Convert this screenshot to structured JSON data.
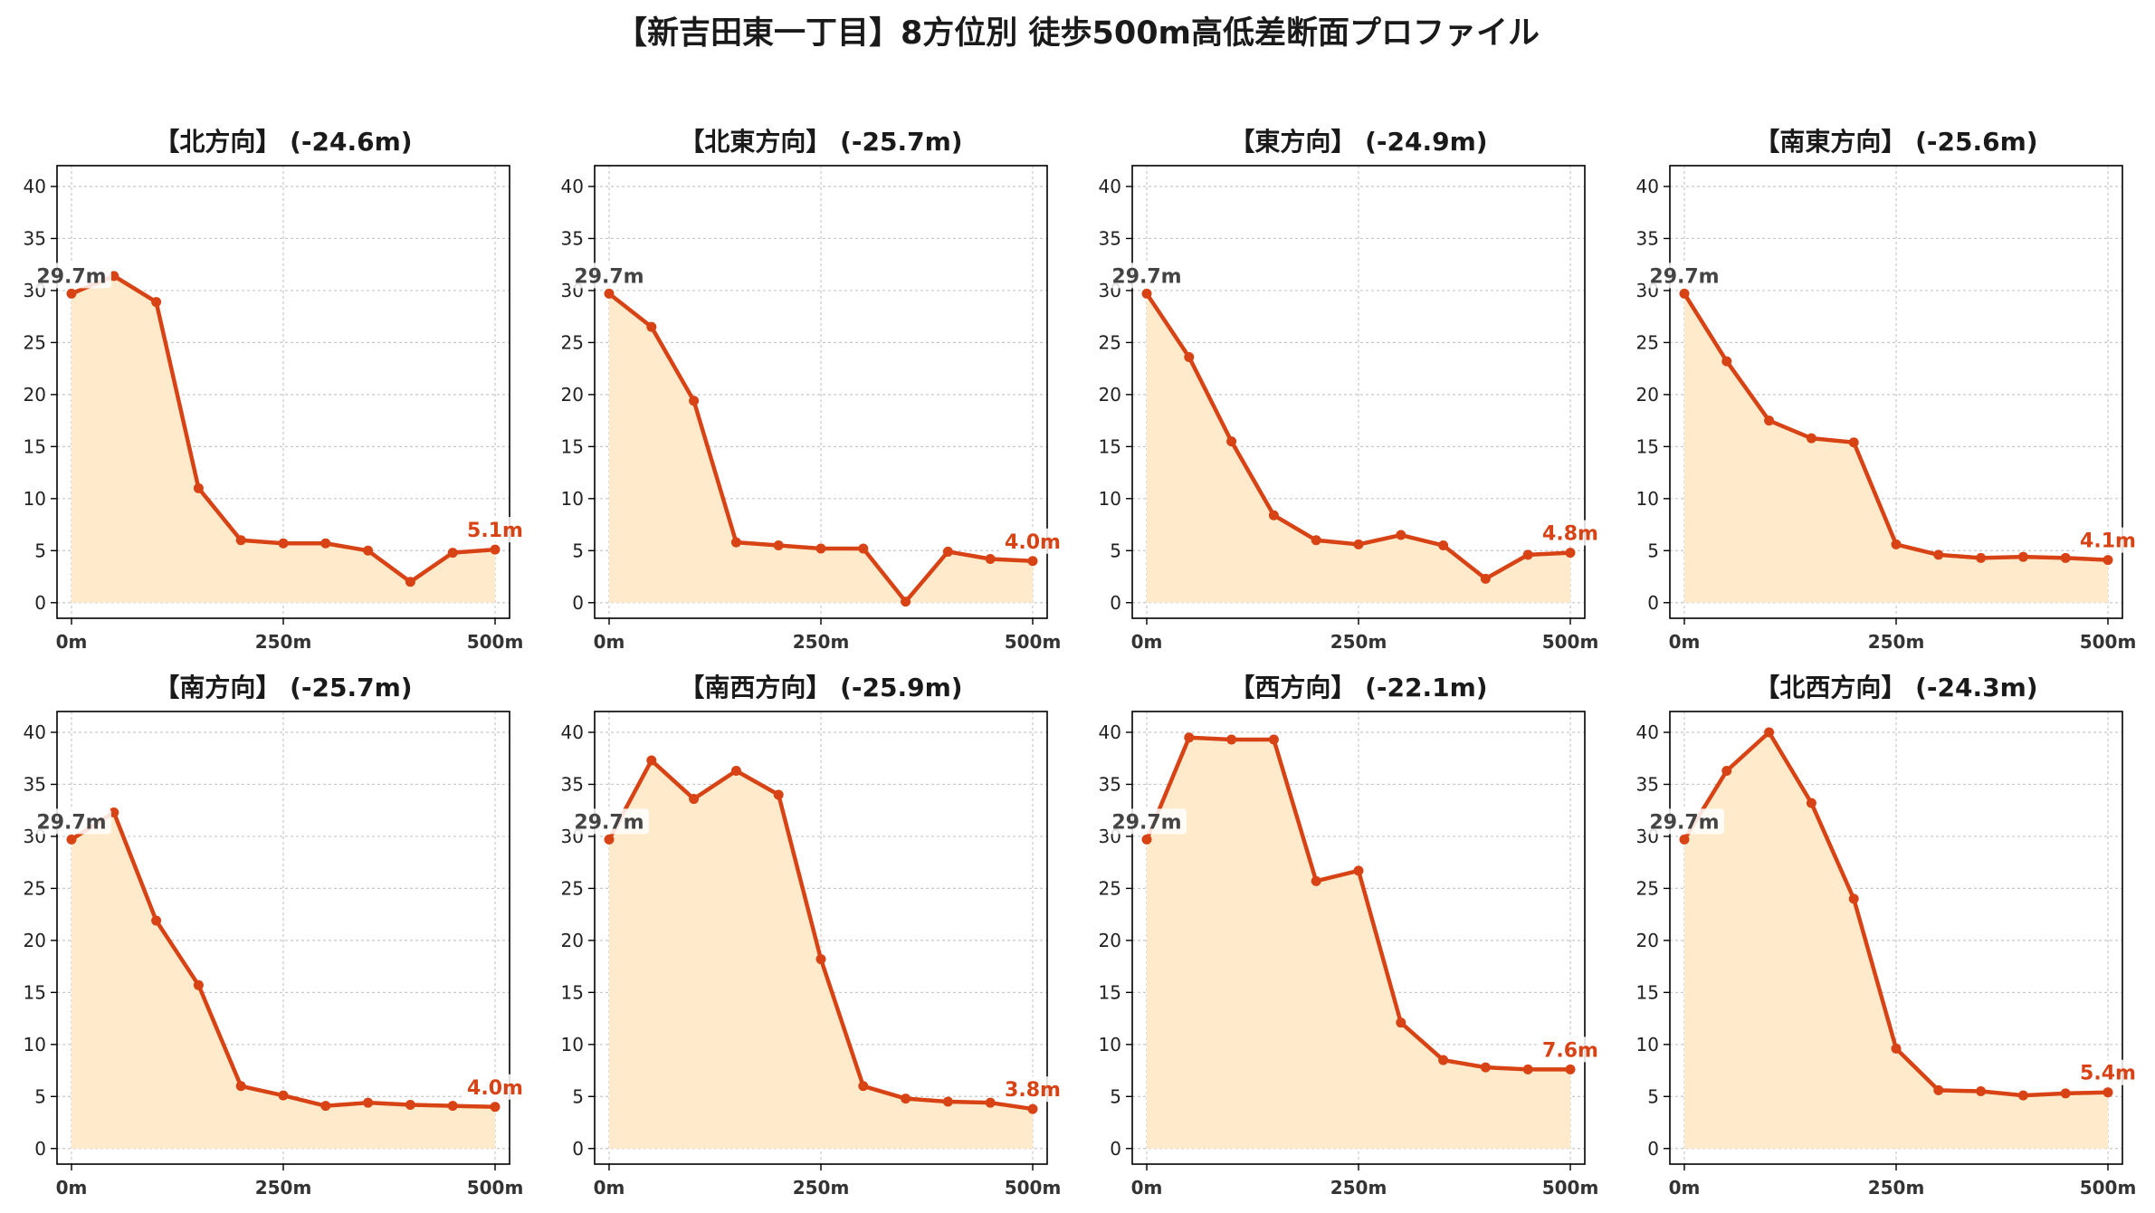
{
  "title": "【新吉田東一丁目】8方位別 徒歩500m高低差断面プロファイル",
  "colors": {
    "line": "#d84315",
    "fill": "#ffebcc",
    "grid": "#c8c8c8",
    "start_label": "#444444",
    "end_label": "#d84315",
    "axis": "#000000"
  },
  "chart_data": [
    {
      "type": "line",
      "title": "【北方向】 (-24.6m)",
      "x": [
        0,
        50,
        100,
        150,
        200,
        250,
        300,
        350,
        400,
        450,
        500
      ],
      "values": [
        29.7,
        31.4,
        28.9,
        11.0,
        6.0,
        5.7,
        5.7,
        5.0,
        2.0,
        4.8,
        5.1
      ],
      "start_label": "29.7m",
      "end_label": "5.1m",
      "x_ticks": [
        "0m",
        "250m",
        "500m"
      ],
      "y_ticks": [
        0,
        5,
        10,
        15,
        20,
        25,
        30,
        35,
        40
      ],
      "xlim": [
        0,
        500
      ],
      "ylim": [
        -1.5,
        42
      ],
      "grid": true
    },
    {
      "type": "line",
      "title": "【北東方向】 (-25.7m)",
      "x": [
        0,
        50,
        100,
        150,
        200,
        250,
        300,
        350,
        400,
        450,
        500
      ],
      "values": [
        29.7,
        26.5,
        19.4,
        5.8,
        5.5,
        5.2,
        5.2,
        0.1,
        4.9,
        4.2,
        4.0
      ],
      "start_label": "29.7m",
      "end_label": "4.0m",
      "x_ticks": [
        "0m",
        "250m",
        "500m"
      ],
      "y_ticks": [
        0,
        5,
        10,
        15,
        20,
        25,
        30,
        35,
        40
      ],
      "xlim": [
        0,
        500
      ],
      "ylim": [
        -1.5,
        42
      ],
      "grid": true
    },
    {
      "type": "line",
      "title": "【東方向】 (-24.9m)",
      "x": [
        0,
        50,
        100,
        150,
        200,
        250,
        300,
        350,
        400,
        450,
        500
      ],
      "values": [
        29.7,
        23.6,
        15.5,
        8.4,
        6.0,
        5.6,
        6.5,
        5.5,
        2.3,
        4.6,
        4.8
      ],
      "start_label": "29.7m",
      "end_label": "4.8m",
      "x_ticks": [
        "0m",
        "250m",
        "500m"
      ],
      "y_ticks": [
        0,
        5,
        10,
        15,
        20,
        25,
        30,
        35,
        40
      ],
      "xlim": [
        0,
        500
      ],
      "ylim": [
        -1.5,
        42
      ],
      "grid": true
    },
    {
      "type": "line",
      "title": "【南東方向】 (-25.6m)",
      "x": [
        0,
        50,
        100,
        150,
        200,
        250,
        300,
        350,
        400,
        450,
        500
      ],
      "values": [
        29.7,
        23.2,
        17.5,
        15.8,
        15.4,
        5.6,
        4.6,
        4.3,
        4.4,
        4.3,
        4.1
      ],
      "start_label": "29.7m",
      "end_label": "4.1m",
      "x_ticks": [
        "0m",
        "250m",
        "500m"
      ],
      "y_ticks": [
        0,
        5,
        10,
        15,
        20,
        25,
        30,
        35,
        40
      ],
      "xlim": [
        0,
        500
      ],
      "ylim": [
        -1.5,
        42
      ],
      "grid": true
    },
    {
      "type": "line",
      "title": "【南方向】 (-25.7m)",
      "x": [
        0,
        50,
        100,
        150,
        200,
        250,
        300,
        350,
        400,
        450,
        500
      ],
      "values": [
        29.7,
        32.3,
        21.9,
        15.7,
        6.0,
        5.1,
        4.1,
        4.4,
        4.2,
        4.1,
        4.0
      ],
      "start_label": "29.7m",
      "end_label": "4.0m",
      "x_ticks": [
        "0m",
        "250m",
        "500m"
      ],
      "y_ticks": [
        0,
        5,
        10,
        15,
        20,
        25,
        30,
        35,
        40
      ],
      "xlim": [
        0,
        500
      ],
      "ylim": [
        -1.5,
        42
      ],
      "grid": true
    },
    {
      "type": "line",
      "title": "【南西方向】 (-25.9m)",
      "x": [
        0,
        50,
        100,
        150,
        200,
        250,
        300,
        350,
        400,
        450,
        500
      ],
      "values": [
        29.7,
        37.3,
        33.6,
        36.3,
        34.0,
        18.2,
        6.0,
        4.8,
        4.5,
        4.4,
        3.8
      ],
      "start_label": "29.7m",
      "end_label": "3.8m",
      "x_ticks": [
        "0m",
        "250m",
        "500m"
      ],
      "y_ticks": [
        0,
        5,
        10,
        15,
        20,
        25,
        30,
        35,
        40
      ],
      "xlim": [
        0,
        500
      ],
      "ylim": [
        -1.5,
        42
      ],
      "grid": true
    },
    {
      "type": "line",
      "title": "【西方向】 (-22.1m)",
      "x": [
        0,
        50,
        100,
        150,
        200,
        250,
        300,
        350,
        400,
        450,
        500
      ],
      "values": [
        29.7,
        39.5,
        39.3,
        39.3,
        25.7,
        26.7,
        12.1,
        8.5,
        7.8,
        7.6,
        7.6
      ],
      "start_label": "29.7m",
      "end_label": "7.6m",
      "x_ticks": [
        "0m",
        "250m",
        "500m"
      ],
      "y_ticks": [
        0,
        5,
        10,
        15,
        20,
        25,
        30,
        35,
        40
      ],
      "xlim": [
        0,
        500
      ],
      "ylim": [
        -1.5,
        42
      ],
      "grid": true
    },
    {
      "type": "line",
      "title": "【北西方向】 (-24.3m)",
      "x": [
        0,
        50,
        100,
        150,
        200,
        250,
        300,
        350,
        400,
        450,
        500
      ],
      "values": [
        29.7,
        36.3,
        40.0,
        33.2,
        24.0,
        9.6,
        5.6,
        5.5,
        5.1,
        5.3,
        5.4
      ],
      "start_label": "29.7m",
      "end_label": "5.4m",
      "x_ticks": [
        "0m",
        "250m",
        "500m"
      ],
      "y_ticks": [
        0,
        5,
        10,
        15,
        20,
        25,
        30,
        35,
        40
      ],
      "xlim": [
        0,
        500
      ],
      "ylim": [
        -1.5,
        42
      ],
      "grid": true
    }
  ]
}
